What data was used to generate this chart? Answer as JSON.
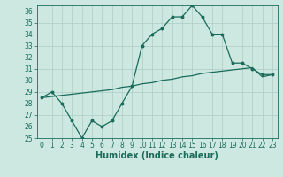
{
  "xlabel": "Humidex (Indice chaleur)",
  "background_color": "#cce8e0",
  "line_color": "#1a6b5a",
  "grid_color": "#aaccc4",
  "xlim": [
    -0.5,
    23.5
  ],
  "ylim": [
    25,
    36.5
  ],
  "yticks": [
    25,
    26,
    27,
    28,
    29,
    30,
    31,
    32,
    33,
    34,
    35,
    36
  ],
  "xticks": [
    0,
    1,
    2,
    3,
    4,
    5,
    6,
    7,
    8,
    9,
    10,
    11,
    12,
    13,
    14,
    15,
    16,
    17,
    18,
    19,
    20,
    21,
    22,
    23
  ],
  "series1_x": [
    0,
    1,
    2,
    3,
    4,
    5,
    6,
    7,
    8,
    9,
    10,
    11,
    12,
    13,
    14,
    15,
    16,
    17,
    18,
    19,
    20,
    21,
    22,
    23
  ],
  "series1_y": [
    28.5,
    29.0,
    28.0,
    26.5,
    25.0,
    26.5,
    26.0,
    26.5,
    28.0,
    29.5,
    33.0,
    34.0,
    34.5,
    35.5,
    35.5,
    36.5,
    35.5,
    34.0,
    34.0,
    31.5,
    31.5,
    31.0,
    30.5,
    30.5
  ],
  "series2_x": [
    0,
    1,
    2,
    3,
    4,
    5,
    6,
    7,
    8,
    9,
    10,
    11,
    12,
    13,
    14,
    15,
    16,
    17,
    18,
    19,
    20,
    21,
    22,
    23
  ],
  "series2_y": [
    28.5,
    28.6,
    28.7,
    28.8,
    28.9,
    29.0,
    29.1,
    29.2,
    29.4,
    29.5,
    29.7,
    29.8,
    30.0,
    30.1,
    30.3,
    30.4,
    30.6,
    30.7,
    30.8,
    30.9,
    31.0,
    31.1,
    30.3,
    30.5
  ],
  "tick_fontsize": 5.5,
  "xlabel_fontsize": 7
}
